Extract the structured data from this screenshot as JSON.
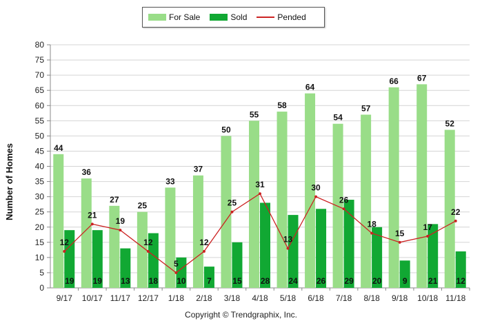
{
  "legend": {
    "items": [
      {
        "label": "For Sale",
        "color": "#99dd88",
        "kind": "bar"
      },
      {
        "label": "Sold",
        "color": "#11a833",
        "kind": "bar"
      },
      {
        "label": "Pended",
        "color": "#cc2222",
        "kind": "line"
      }
    ]
  },
  "footer": {
    "copyright": "Copyright © Trendgraphix, Inc."
  },
  "chart_data": {
    "type": "bar",
    "title": "",
    "xlabel": "",
    "ylabel": "Number of Homes",
    "ylim": [
      0,
      80
    ],
    "yticks": [
      0,
      5,
      10,
      15,
      20,
      25,
      30,
      35,
      40,
      45,
      50,
      55,
      60,
      65,
      70,
      75,
      80
    ],
    "grid": true,
    "legend_position": "top-center",
    "categories": [
      "9/17",
      "10/17",
      "11/17",
      "12/17",
      "1/18",
      "2/18",
      "3/18",
      "4/18",
      "5/18",
      "6/18",
      "7/18",
      "8/18",
      "9/18",
      "10/18",
      "11/18"
    ],
    "series": [
      {
        "name": "For Sale",
        "type": "bar",
        "color": "#99dd88",
        "values": [
          44,
          36,
          27,
          25,
          33,
          37,
          50,
          55,
          58,
          64,
          54,
          57,
          66,
          67,
          52
        ]
      },
      {
        "name": "Sold",
        "type": "bar",
        "color": "#11a833",
        "values": [
          19,
          19,
          13,
          18,
          10,
          7,
          15,
          28,
          24,
          26,
          29,
          20,
          9,
          21,
          12
        ]
      },
      {
        "name": "Pended",
        "type": "line",
        "color": "#cc2222",
        "values": [
          12,
          21,
          19,
          12,
          5,
          12,
          25,
          31,
          13,
          30,
          26,
          18,
          15,
          17,
          22
        ]
      }
    ]
  }
}
